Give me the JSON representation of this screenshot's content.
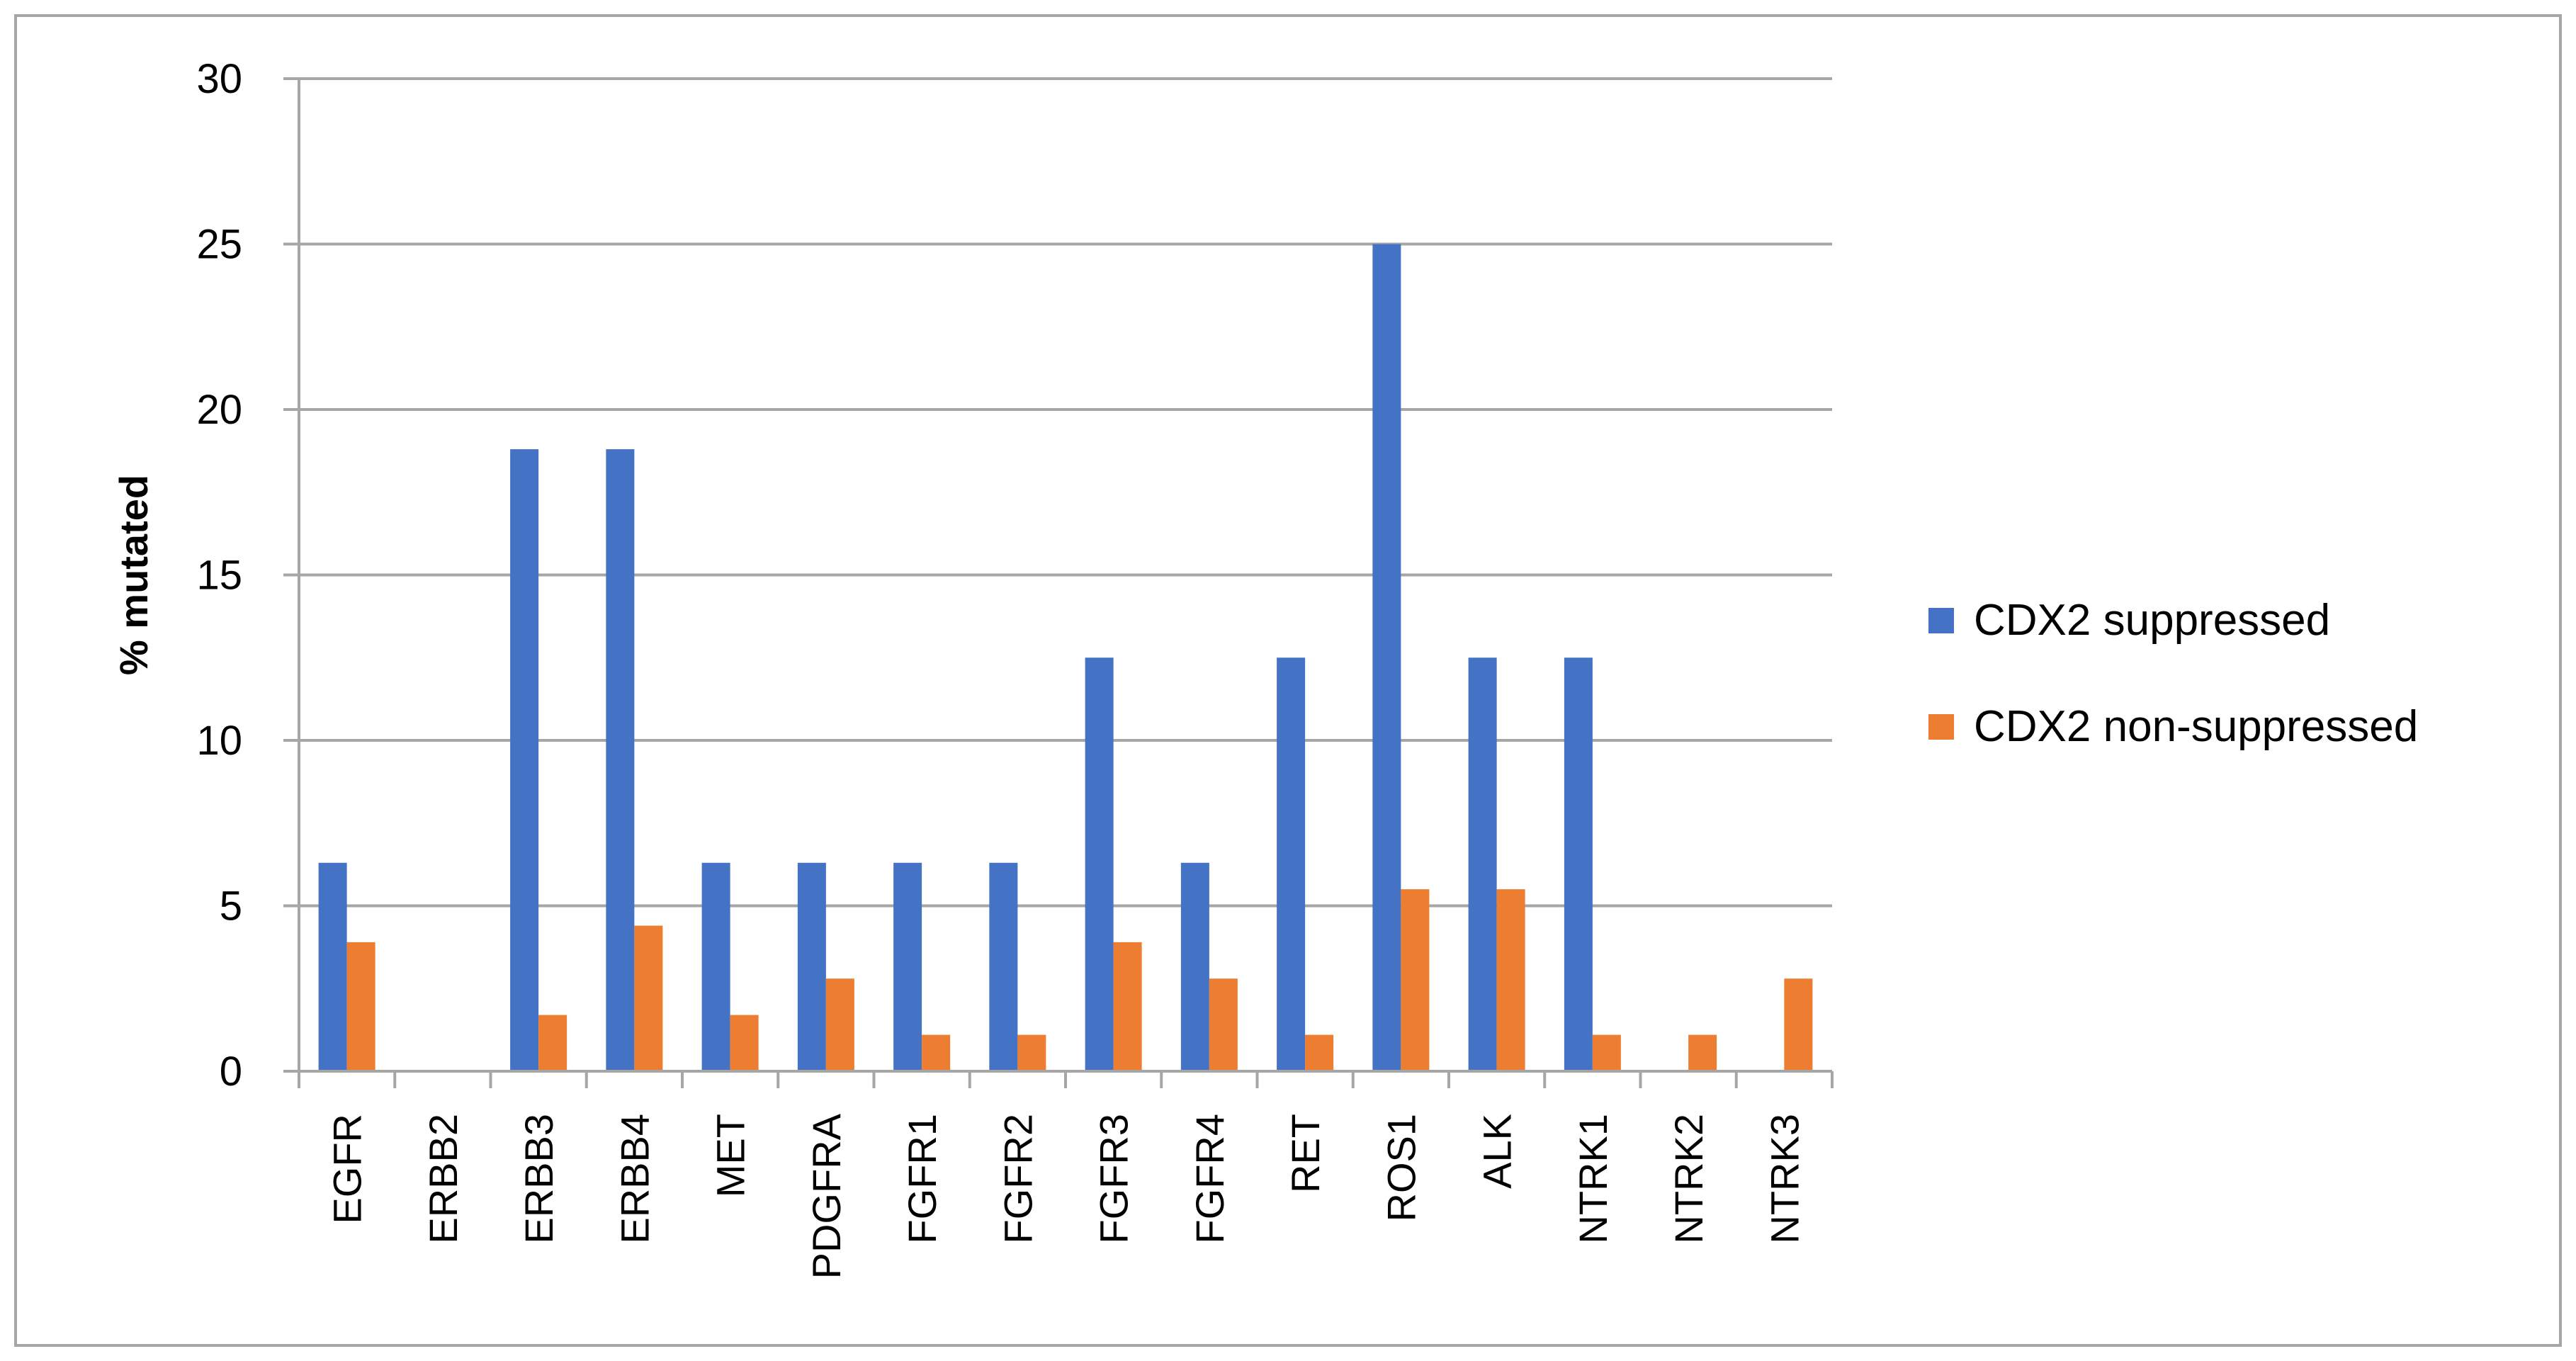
{
  "chart_data": {
    "type": "bar",
    "title": "",
    "xlabel": "",
    "ylabel": "% mutated",
    "ylim": [
      0,
      30
    ],
    "yticks": [
      0,
      5,
      10,
      15,
      20,
      25,
      30
    ],
    "grid": true,
    "legend_position": "right",
    "categories": [
      "EGFR",
      "ERBB2",
      "ERBB3",
      "ERBB4",
      "MET",
      "PDGFRA",
      "FGFR1",
      "FGFR2",
      "FGFR3",
      "FGFR4",
      "RET",
      "ROS1",
      "ALK",
      "NTRK1",
      "NTRK2",
      "NTRK3"
    ],
    "series": [
      {
        "name": "CDX2 suppressed",
        "color": "#4472c4",
        "values": [
          6.3,
          0,
          18.8,
          18.8,
          6.3,
          6.3,
          6.3,
          6.3,
          12.5,
          6.3,
          12.5,
          25,
          12.5,
          12.5,
          0,
          0
        ]
      },
      {
        "name": "CDX2 non-suppressed",
        "color": "#ed7d31",
        "values": [
          3.9,
          0,
          1.7,
          4.4,
          1.7,
          2.8,
          1.1,
          1.1,
          3.9,
          2.8,
          1.1,
          5.5,
          5.5,
          1.1,
          1.1,
          2.8
        ]
      }
    ]
  }
}
